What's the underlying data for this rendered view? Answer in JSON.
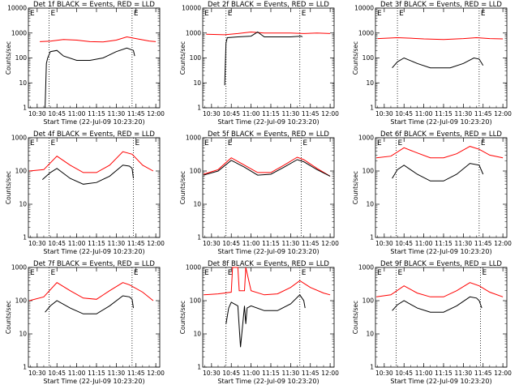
{
  "colors": {
    "events": "#000000",
    "lld": "#ff0000",
    "background": "#ffffff",
    "axis": "#000000"
  },
  "chart_data": [
    {
      "type": "line",
      "title": "Det 1f BLACK = Events, RED = LLD",
      "ylabel": "Counts/sec",
      "xlabel": "Start Time (22-Jul-09 10:23:20)",
      "xticks": [
        "10:30",
        "10:45",
        "11:00",
        "11:15",
        "11:30",
        "11:45",
        "12:00"
      ],
      "yticks": [
        "1",
        "10",
        "100",
        "1000",
        "10000"
      ],
      "ylim_decades": [
        0,
        4
      ],
      "yscale": "log",
      "marker_labels": [
        "E",
        "E"
      ],
      "marker_times": [
        "10:39",
        "11:42"
      ],
      "series": [
        {
          "name": "LLD",
          "color": "#ff0000",
          "x": [
            "10:32",
            "10:40",
            "10:50",
            "11:00",
            "11:10",
            "11:20",
            "11:30",
            "11:38",
            "11:45",
            "11:55",
            "12:00"
          ],
          "y": [
            450,
            470,
            550,
            520,
            450,
            440,
            520,
            700,
            600,
            480,
            450
          ]
        },
        {
          "name": "Events",
          "color": "#000000",
          "x": [
            "10:36",
            "10:37",
            "10:38",
            "10:40",
            "10:45",
            "10:50",
            "11:00",
            "11:10",
            "11:20",
            "11:30",
            "11:38",
            "11:43",
            "11:44"
          ],
          "y": [
            1,
            60,
            100,
            180,
            200,
            120,
            80,
            80,
            100,
            180,
            250,
            200,
            120
          ]
        }
      ]
    },
    {
      "type": "line",
      "title": "Det 2f BLACK = Events, RED = LLD",
      "ylabel": "Counts/sec",
      "xlabel": "Start Time (22-Jul-09 10:23:20)",
      "xticks": [
        "10:30",
        "10:45",
        "11:00",
        "11:15",
        "11:30",
        "11:45",
        "12:00"
      ],
      "yticks": [
        "1",
        "10",
        "100",
        "1000",
        "10000"
      ],
      "ylim_decades": [
        0,
        4
      ],
      "yscale": "log",
      "marker_labels": [
        "E",
        "E"
      ],
      "marker_times": [
        "10:41",
        "11:37"
      ],
      "series": [
        {
          "name": "LLD",
          "color": "#ff0000",
          "x": [
            "10:26",
            "10:40",
            "10:50",
            "11:00",
            "11:10",
            "11:20",
            "11:30",
            "11:40",
            "11:50",
            "12:00"
          ],
          "y": [
            900,
            850,
            950,
            1100,
            1000,
            1000,
            1000,
            950,
            1000,
            950
          ]
        },
        {
          "name": "Events",
          "color": "#000000",
          "x": [
            "10:40",
            "10:41",
            "10:42",
            "10:50",
            "11:00",
            "11:05",
            "11:10",
            "11:20",
            "11:30",
            "11:38",
            "11:39"
          ],
          "y": [
            8,
            400,
            650,
            700,
            750,
            1100,
            700,
            700,
            700,
            750,
            700
          ]
        }
      ]
    },
    {
      "type": "line",
      "title": "Det 3f BLACK = Events, RED = LLD",
      "ylabel": "Counts/sec",
      "xlabel": "Start Time (22-Jul-09 10:23:20)",
      "xticks": [
        "10:30",
        "10:45",
        "11:00",
        "11:15",
        "11:30",
        "11:45",
        "12:00"
      ],
      "yticks": [
        "1",
        "10",
        "100",
        "1000",
        "10000"
      ],
      "ylim_decades": [
        0,
        4
      ],
      "yscale": "log",
      "marker_labels": [
        "E",
        "E"
      ],
      "marker_times": [
        "10:40",
        "11:42"
      ],
      "series": [
        {
          "name": "LLD",
          "color": "#ff0000",
          "x": [
            "10:25",
            "10:40",
            "10:50",
            "11:00",
            "11:15",
            "11:30",
            "11:40",
            "11:50",
            "12:00"
          ],
          "y": [
            600,
            650,
            620,
            580,
            550,
            600,
            650,
            600,
            580
          ]
        },
        {
          "name": "Events",
          "color": "#000000",
          "x": [
            "10:36",
            "10:40",
            "10:45",
            "10:55",
            "11:05",
            "11:20",
            "11:30",
            "11:38",
            "11:42",
            "11:45"
          ],
          "y": [
            40,
            70,
            100,
            60,
            40,
            40,
            60,
            100,
            90,
            50
          ]
        }
      ]
    },
    {
      "type": "line",
      "title": "Det 4f BLACK = Events, RED = LLD",
      "ylabel": "Counts/sec",
      "xlabel": "Start Time (22-Jul-09 10:23:20)",
      "xticks": [
        "10:30",
        "10:45",
        "11:00",
        "11:15",
        "11:30",
        "11:45",
        "12:00"
      ],
      "yticks": [
        "1",
        "10",
        "100",
        "1000"
      ],
      "ylim_decades": [
        0,
        3
      ],
      "yscale": "log",
      "marker_labels": [
        "E",
        "E"
      ],
      "marker_times": [
        "10:39",
        "11:43"
      ],
      "series": [
        {
          "name": "LLD",
          "color": "#ff0000",
          "x": [
            "10:24",
            "10:35",
            "10:45",
            "10:55",
            "11:05",
            "11:15",
            "11:25",
            "11:35",
            "11:42",
            "11:50",
            "11:58"
          ],
          "y": [
            100,
            110,
            280,
            150,
            90,
            90,
            150,
            380,
            320,
            150,
            100
          ]
        },
        {
          "name": "Events",
          "color": "#000000",
          "x": [
            "10:34",
            "10:40",
            "10:45",
            "10:55",
            "11:05",
            "11:15",
            "11:25",
            "11:35",
            "11:40",
            "11:42",
            "11:43"
          ],
          "y": [
            55,
            90,
            120,
            60,
            40,
            45,
            70,
            150,
            140,
            120,
            60
          ]
        }
      ]
    },
    {
      "type": "line",
      "title": "Det 5f BLACK = Events, RED = LLD",
      "ylabel": "Counts/sec",
      "xlabel": "Start Time (22-Jul-09 10:23:20)",
      "xticks": [
        "10:30",
        "10:45",
        "11:00",
        "11:15",
        "11:30",
        "11:45",
        "12:00"
      ],
      "yticks": [
        "1",
        "10",
        "100",
        "1000"
      ],
      "ylim_decades": [
        0,
        3
      ],
      "yscale": "log",
      "marker_labels": [
        "E",
        "E"
      ],
      "marker_times": [
        "10:41",
        "11:38"
      ],
      "series": [
        {
          "name": "LLD",
          "color": "#ff0000",
          "x": [
            "10:24",
            "10:35",
            "10:45",
            "10:55",
            "11:05",
            "11:15",
            "11:25",
            "11:35",
            "11:40",
            "11:50",
            "12:00"
          ],
          "y": [
            80,
            110,
            250,
            150,
            90,
            90,
            150,
            260,
            220,
            120,
            70
          ]
        },
        {
          "name": "Events",
          "color": "#000000",
          "x": [
            "10:24",
            "10:35",
            "10:45",
            "10:55",
            "11:05",
            "11:15",
            "11:25",
            "11:35",
            "11:40",
            "11:50",
            "12:00"
          ],
          "y": [
            75,
            100,
            210,
            130,
            75,
            80,
            130,
            220,
            190,
            110,
            70
          ]
        }
      ]
    },
    {
      "type": "line",
      "title": "Det 6f BLACK = Events, RED = LLD",
      "ylabel": "Counts/sec",
      "xlabel": "Start Time (22-Jul-09 10:23:20)",
      "xticks": [
        "10:30",
        "10:45",
        "11:00",
        "11:15",
        "11:30",
        "11:45",
        "12:00"
      ],
      "yticks": [
        "1",
        "10",
        "100",
        "1000"
      ],
      "ylim_decades": [
        0,
        3
      ],
      "yscale": "log",
      "marker_labels": [
        "E",
        "E"
      ],
      "marker_times": [
        "10:39",
        "11:42"
      ],
      "series": [
        {
          "name": "LLD",
          "color": "#ff0000",
          "x": [
            "10:24",
            "10:35",
            "10:45",
            "10:55",
            "11:05",
            "11:15",
            "11:25",
            "11:35",
            "11:42",
            "11:50",
            "12:00"
          ],
          "y": [
            250,
            280,
            500,
            350,
            250,
            250,
            330,
            550,
            450,
            300,
            250
          ]
        },
        {
          "name": "Events",
          "color": "#000000",
          "x": [
            "10:36",
            "10:40",
            "10:45",
            "10:55",
            "11:05",
            "11:15",
            "11:25",
            "11:35",
            "11:42",
            "11:45"
          ],
          "y": [
            60,
            110,
            150,
            80,
            50,
            50,
            80,
            170,
            150,
            80
          ]
        }
      ]
    },
    {
      "type": "line",
      "title": "Det 7f BLACK = Events, RED = LLD",
      "ylabel": "Counts/sec",
      "xlabel": "Start Time (22-Jul-09 10:23:20)",
      "xticks": [
        "10:30",
        "10:45",
        "11:00",
        "11:15",
        "11:30",
        "11:45",
        "12:00"
      ],
      "yticks": [
        "1",
        "10",
        "100",
        "1000"
      ],
      "ylim_decades": [
        0,
        3
      ],
      "yscale": "log",
      "marker_labels": [
        "E",
        "E"
      ],
      "marker_times": [
        "10:39",
        "11:42"
      ],
      "series": [
        {
          "name": "LLD",
          "color": "#ff0000",
          "x": [
            "10:24",
            "10:35",
            "10:45",
            "10:55",
            "11:05",
            "11:15",
            "11:25",
            "11:35",
            "11:40",
            "11:50",
            "11:58"
          ],
          "y": [
            100,
            130,
            350,
            200,
            120,
            110,
            200,
            350,
            300,
            180,
            100
          ]
        },
        {
          "name": "Events",
          "color": "#000000",
          "x": [
            "10:36",
            "10:40",
            "10:45",
            "10:55",
            "11:05",
            "11:15",
            "11:25",
            "11:35",
            "11:40",
            "11:42",
            "11:43"
          ],
          "y": [
            45,
            70,
            100,
            60,
            40,
            40,
            70,
            140,
            130,
            110,
            60
          ]
        }
      ]
    },
    {
      "type": "line",
      "title": "Det 8f BLACK = Events, RED = LLD",
      "ylabel": "Counts/sec",
      "xlabel": "Start Time (22-Jul-09 10:23:20)",
      "xticks": [
        "10:30",
        "10:45",
        "11:00",
        "11:15",
        "11:30",
        "11:45",
        "12:00"
      ],
      "yticks": [
        "1",
        "10",
        "100",
        "1000"
      ],
      "ylim_decades": [
        0,
        3
      ],
      "yscale": "log",
      "marker_labels": [
        "E",
        "E"
      ],
      "marker_times": [
        "10:41",
        "11:37"
      ],
      "series": [
        {
          "name": "LLD",
          "color": "#ff0000",
          "x": [
            "10:24",
            "10:35",
            "10:45",
            "10:46",
            "10:50",
            "10:51",
            "10:55",
            "10:56",
            "11:00",
            "11:10",
            "11:20",
            "11:30",
            "11:37",
            "11:45",
            "11:55",
            "12:00"
          ],
          "y": [
            150,
            160,
            180,
            1000,
            1000,
            200,
            200,
            1000,
            200,
            150,
            160,
            250,
            400,
            250,
            170,
            150
          ]
        },
        {
          "name": "Events",
          "color": "#000000",
          "x": [
            "10:41",
            "10:43",
            "10:45",
            "10:50",
            "10:52",
            "10:55",
            "10:56",
            "10:57",
            "11:00",
            "11:10",
            "11:20",
            "11:30",
            "11:37",
            "11:40",
            "11:41"
          ],
          "y": [
            20,
            60,
            90,
            70,
            4,
            70,
            20,
            60,
            70,
            50,
            50,
            80,
            150,
            100,
            60
          ]
        }
      ]
    },
    {
      "type": "line",
      "title": "Det 9f BLACK = Events, RED = LLD",
      "ylabel": "Counts/sec",
      "xlabel": "Start Time (22-Jul-09 10:23:20)",
      "xticks": [
        "10:30",
        "10:45",
        "11:00",
        "11:15",
        "11:30",
        "11:45",
        "12:00"
      ],
      "yticks": [
        "1",
        "10",
        "100",
        "1000"
      ],
      "ylim_decades": [
        0,
        3
      ],
      "yscale": "log",
      "marker_labels": [
        "E",
        "E"
      ],
      "marker_times": [
        "10:39",
        "11:43"
      ],
      "series": [
        {
          "name": "LLD",
          "color": "#ff0000",
          "x": [
            "10:24",
            "10:35",
            "10:45",
            "10:55",
            "11:05",
            "11:15",
            "11:25",
            "11:35",
            "11:42",
            "11:50",
            "12:00"
          ],
          "y": [
            130,
            150,
            280,
            170,
            130,
            130,
            200,
            350,
            280,
            180,
            130
          ]
        },
        {
          "name": "Events",
          "color": "#000000",
          "x": [
            "10:36",
            "10:40",
            "10:45",
            "10:55",
            "11:05",
            "11:15",
            "11:25",
            "11:35",
            "11:40",
            "11:42",
            "11:44"
          ],
          "y": [
            50,
            75,
            100,
            60,
            45,
            45,
            70,
            130,
            120,
            100,
            60
          ]
        }
      ]
    }
  ]
}
